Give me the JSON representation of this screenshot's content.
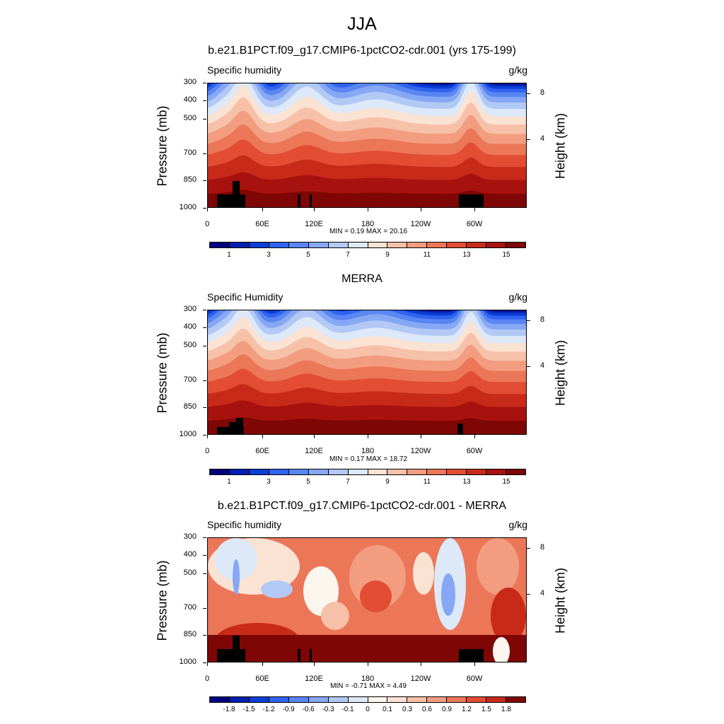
{
  "figure": {
    "title": "JJA",
    "panels": [
      {
        "title": "b.e21.B1PCT.f09_g17.CMIP6-1pctCO2-cdr.001 (yrs 175-199)",
        "left_label": "Specific humidity",
        "right_label": "g/kg",
        "stats": "MIN =   0.19  MAX =  20.16",
        "colorbar_labels": [
          "1",
          "3",
          "5",
          "7",
          "9",
          "11",
          "13",
          "15"
        ]
      },
      {
        "title": "MERRA",
        "left_label": "Specific Humidity",
        "right_label": "g/kg",
        "stats": "MIN =   0.17  MAX =  18.72",
        "colorbar_labels": [
          "1",
          "3",
          "5",
          "7",
          "9",
          "11",
          "13",
          "15"
        ]
      },
      {
        "title": "b.e21.B1PCT.f09_g17.CMIP6-1pctCO2-cdr.001 - MERRA",
        "left_label": "Specific humidity",
        "right_label": "g/kg",
        "stats": "MIN =  -0.71  MAX =   4.49",
        "colorbar_labels": [
          "-1.8",
          "-1.5",
          "-1.2",
          "-0.9",
          "-0.6",
          "-0.3",
          "-0.1",
          "0",
          "0.1",
          "0.3",
          "0.6",
          "0.9",
          "1.2",
          "1.5",
          "1.8"
        ]
      }
    ]
  },
  "chart_data": [
    {
      "type": "heatmap",
      "title": "b.e21.B1PCT.f09_g17.CMIP6-1pctCO2-cdr.001 (yrs 175-199)",
      "variable": "Specific humidity",
      "units": "g/kg",
      "xlabel": "",
      "ylabel": "Pressure (mb)",
      "y2label": "Height (km)",
      "xticks": [
        "0",
        "60E",
        "120E",
        "180",
        "120W",
        "60W"
      ],
      "yticks": [
        "300",
        "400",
        "500",
        "700",
        "850",
        "1000"
      ],
      "y2ticks": [
        "8",
        "4"
      ],
      "levels": [
        1,
        2,
        3,
        4,
        5,
        6,
        7,
        8,
        9,
        10,
        11,
        12,
        13,
        14,
        15
      ],
      "min": 0.19,
      "max": 20.16
    },
    {
      "type": "heatmap",
      "title": "MERRA",
      "variable": "Specific Humidity",
      "units": "g/kg",
      "xlabel": "",
      "ylabel": "Pressure (mb)",
      "y2label": "Height (km)",
      "xticks": [
        "0",
        "60E",
        "120E",
        "180",
        "120W",
        "60W"
      ],
      "yticks": [
        "300",
        "400",
        "500",
        "700",
        "850",
        "1000"
      ],
      "y2ticks": [
        "8",
        "4"
      ],
      "levels": [
        1,
        2,
        3,
        4,
        5,
        6,
        7,
        8,
        9,
        10,
        11,
        12,
        13,
        14,
        15
      ],
      "min": 0.17,
      "max": 18.72
    },
    {
      "type": "heatmap",
      "title": "b.e21.B1PCT.f09_g17.CMIP6-1pctCO2-cdr.001 - MERRA",
      "variable": "Specific humidity",
      "units": "g/kg",
      "xlabel": "",
      "ylabel": "Pressure (mb)",
      "y2label": "Height (km)",
      "xticks": [
        "0",
        "60E",
        "120E",
        "180",
        "120W",
        "60W"
      ],
      "yticks": [
        "300",
        "400",
        "500",
        "700",
        "850",
        "1000"
      ],
      "y2ticks": [
        "8",
        "4"
      ],
      "levels": [
        -1.8,
        -1.5,
        -1.2,
        -0.9,
        -0.6,
        -0.3,
        -0.1,
        0,
        0.1,
        0.3,
        0.6,
        0.9,
        1.2,
        1.5,
        1.8
      ],
      "min": -0.71,
      "max": 4.49
    }
  ],
  "axes": {
    "ylabel": "Pressure (mb)",
    "y2label": "Height (km)",
    "xticks": [
      "0",
      "60E",
      "120E",
      "180",
      "120W",
      "60W"
    ],
    "yticks": [
      "300",
      "400",
      "500",
      "700",
      "850",
      "1000"
    ],
    "y2ticks": [
      "8",
      "4"
    ]
  },
  "colors": {
    "abs_scale": [
      "#00007f",
      "#0020b0",
      "#0a3ed6",
      "#2f63f0",
      "#5a86f2",
      "#86a8f4",
      "#b2c9f6",
      "#dde8f8",
      "#fbe3d4",
      "#f6c1a8",
      "#f29d80",
      "#ec7658",
      "#e24d34",
      "#c82a1a",
      "#a8120e",
      "#7e0605"
    ],
    "diff_scale": [
      "#00007f",
      "#0020b0",
      "#0a3ed6",
      "#2f63f0",
      "#5a86f2",
      "#86a8f4",
      "#b2c9f6",
      "#dde8f8",
      "#fdf6ee",
      "#fbe3d4",
      "#f6c1a8",
      "#f29d80",
      "#ec7658",
      "#e24d34",
      "#c82a1a",
      "#7e0605"
    ],
    "mask": "#000000"
  }
}
